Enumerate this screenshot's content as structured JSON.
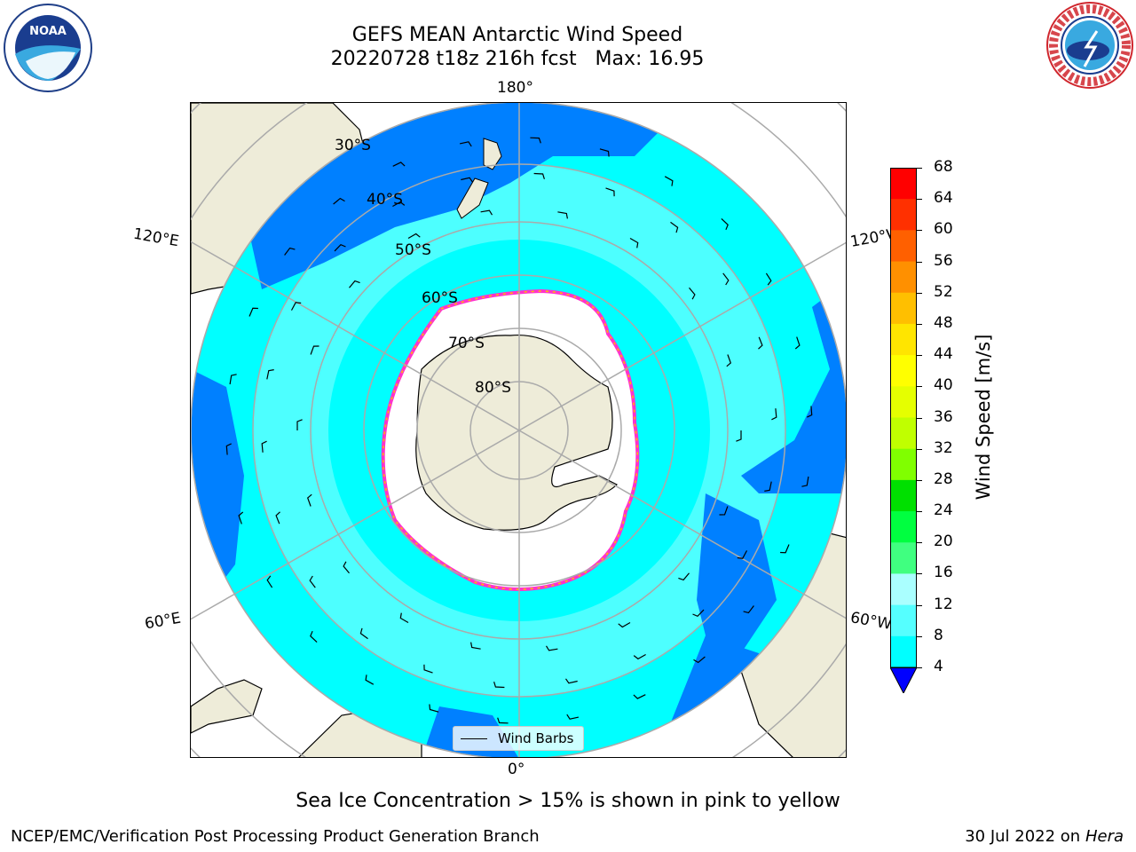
{
  "title": "GEFS MEAN Antarctic Wind Speed",
  "subtitle": "20220728 t18z 216h fcst   Max: 16.95",
  "logos": {
    "left": "NOAA",
    "right": "NATIONAL WEATHER SERVICE"
  },
  "longitude_labels": {
    "top": "180°",
    "bottom": "0°",
    "left_upper": "120°E",
    "left_lower": "60°E",
    "right_upper": "120°W",
    "right_lower": "60°W"
  },
  "latitude_labels": [
    "30°S",
    "40°S",
    "50°S",
    "60°S",
    "70°S",
    "80°S"
  ],
  "legend": {
    "label": "Wind Barbs"
  },
  "colorbar": {
    "title": "Wind Speed [m/s]",
    "ticks": [
      "68",
      "64",
      "60",
      "56",
      "52",
      "48",
      "44",
      "40",
      "36",
      "32",
      "28",
      "24",
      "20",
      "16",
      "12",
      "8",
      "4"
    ],
    "colors": [
      "#ff0000",
      "#ff3000",
      "#ff6000",
      "#ff9000",
      "#ffbf00",
      "#ffe500",
      "#ffff00",
      "#e5ff00",
      "#c0ff00",
      "#80ff00",
      "#00e000",
      "#00ff40",
      "#40ff80",
      "#aaffff",
      "#55ffff",
      "#00ffff",
      "#0080ff"
    ],
    "extend_color": "#0000ff"
  },
  "note": "Sea Ice Concentration > 15% is shown in pink to yellow",
  "footer": {
    "left": "NCEP/EMC/Verification Post Processing Product Generation Branch",
    "right_date": "30 Jul 2022 on ",
    "right_host": "Hera"
  }
}
